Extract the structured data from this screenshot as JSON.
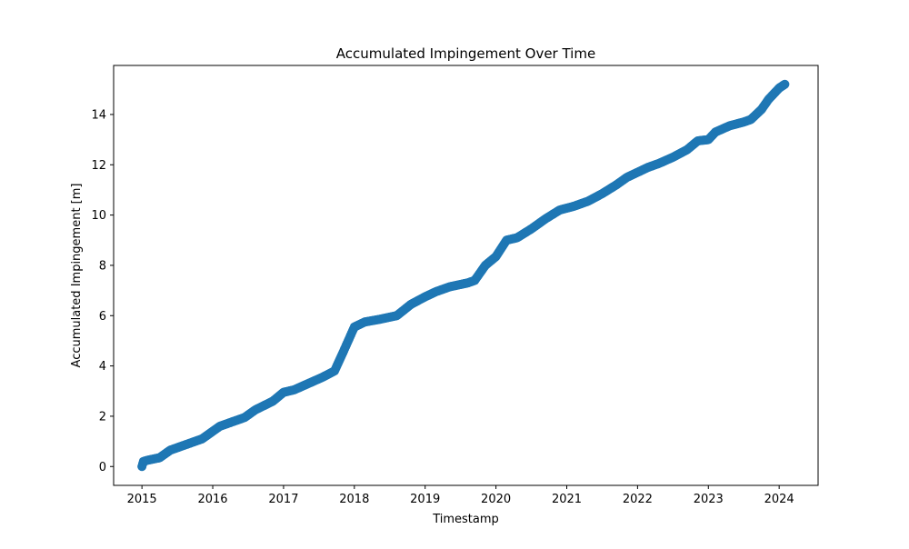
{
  "chart_data": {
    "type": "scatter",
    "title": "Accumulated Impingement Over Time",
    "xlabel": "Timestamp",
    "ylabel": "Accumulated Impingement [m]",
    "xlim": [
      2014.6,
      2024.55
    ],
    "ylim": [
      -0.75,
      15.95
    ],
    "x_ticks": [
      2015,
      2016,
      2017,
      2018,
      2019,
      2020,
      2021,
      2022,
      2023,
      2024
    ],
    "x_tick_labels": [
      "2015",
      "2016",
      "2017",
      "2018",
      "2019",
      "2020",
      "2021",
      "2022",
      "2023",
      "2024"
    ],
    "y_ticks": [
      0,
      2,
      4,
      6,
      8,
      10,
      12,
      14
    ],
    "y_tick_labels": [
      "0",
      "2",
      "4",
      "6",
      "8",
      "10",
      "12",
      "14"
    ],
    "grid": false,
    "legend": "none",
    "color": "#1f77b4",
    "series": [
      {
        "x": [
          2015.0,
          2015.02,
          2015.08,
          2015.25,
          2015.4,
          2015.6,
          2015.85,
          2016.0,
          2016.1,
          2016.25,
          2016.45,
          2016.6,
          2016.85,
          2017.0,
          2017.15,
          2017.35,
          2017.55,
          2017.72,
          2017.85,
          2018.0,
          2018.15,
          2018.35,
          2018.6,
          2018.8,
          2019.0,
          2019.15,
          2019.35,
          2019.6,
          2019.7,
          2019.85,
          2020.0,
          2020.15,
          2020.3,
          2020.5,
          2020.7,
          2020.9,
          2021.1,
          2021.3,
          2021.5,
          2021.7,
          2021.85,
          2022.0,
          2022.15,
          2022.3,
          2022.5,
          2022.7,
          2022.85,
          2023.0,
          2023.1,
          2023.3,
          2023.5,
          2023.6,
          2023.75,
          2023.85,
          2024.0,
          2024.08
        ],
        "y": [
          0.0,
          0.2,
          0.25,
          0.35,
          0.65,
          0.85,
          1.1,
          1.4,
          1.6,
          1.75,
          1.95,
          2.25,
          2.6,
          2.95,
          3.05,
          3.3,
          3.55,
          3.8,
          4.6,
          5.55,
          5.75,
          5.85,
          6.0,
          6.45,
          6.75,
          6.95,
          7.15,
          7.3,
          7.4,
          8.0,
          8.35,
          9.0,
          9.1,
          9.45,
          9.85,
          10.2,
          10.35,
          10.55,
          10.85,
          11.2,
          11.5,
          11.7,
          11.9,
          12.05,
          12.3,
          12.6,
          12.95,
          13.0,
          13.3,
          13.55,
          13.7,
          13.8,
          14.2,
          14.6,
          15.05,
          15.2
        ]
      }
    ]
  }
}
